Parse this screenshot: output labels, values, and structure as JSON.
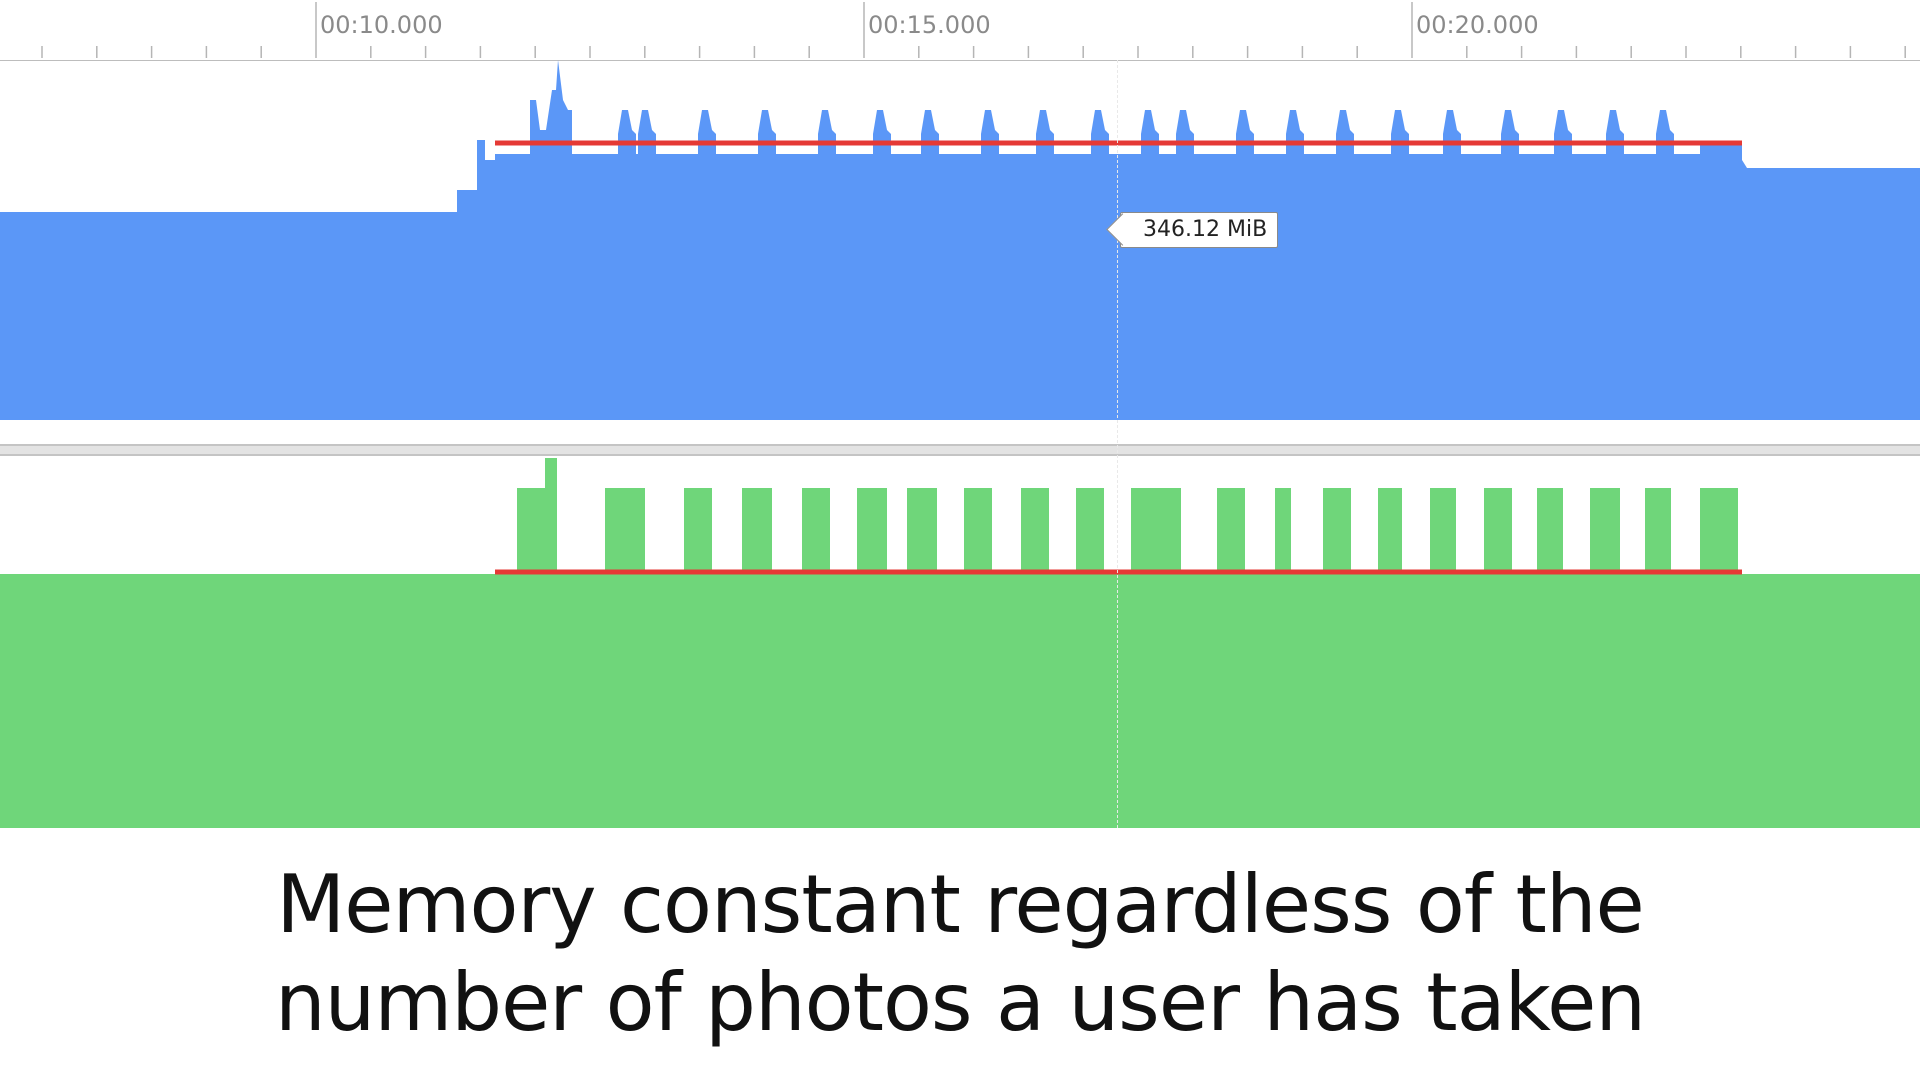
{
  "timeline": {
    "tick_labels": [
      "00:10.000",
      "00:15.000",
      "00:20.000"
    ],
    "cursor_value": "346.12 MiB"
  },
  "colors": {
    "memory": "#5b97f7",
    "events": "#6fd67a",
    "annotation_line": "#e53935",
    "ruler_text": "#8a8a8a"
  },
  "caption": {
    "line1": "Memory constant regardless of the",
    "line2": "number of photos a user has taken"
  }
}
